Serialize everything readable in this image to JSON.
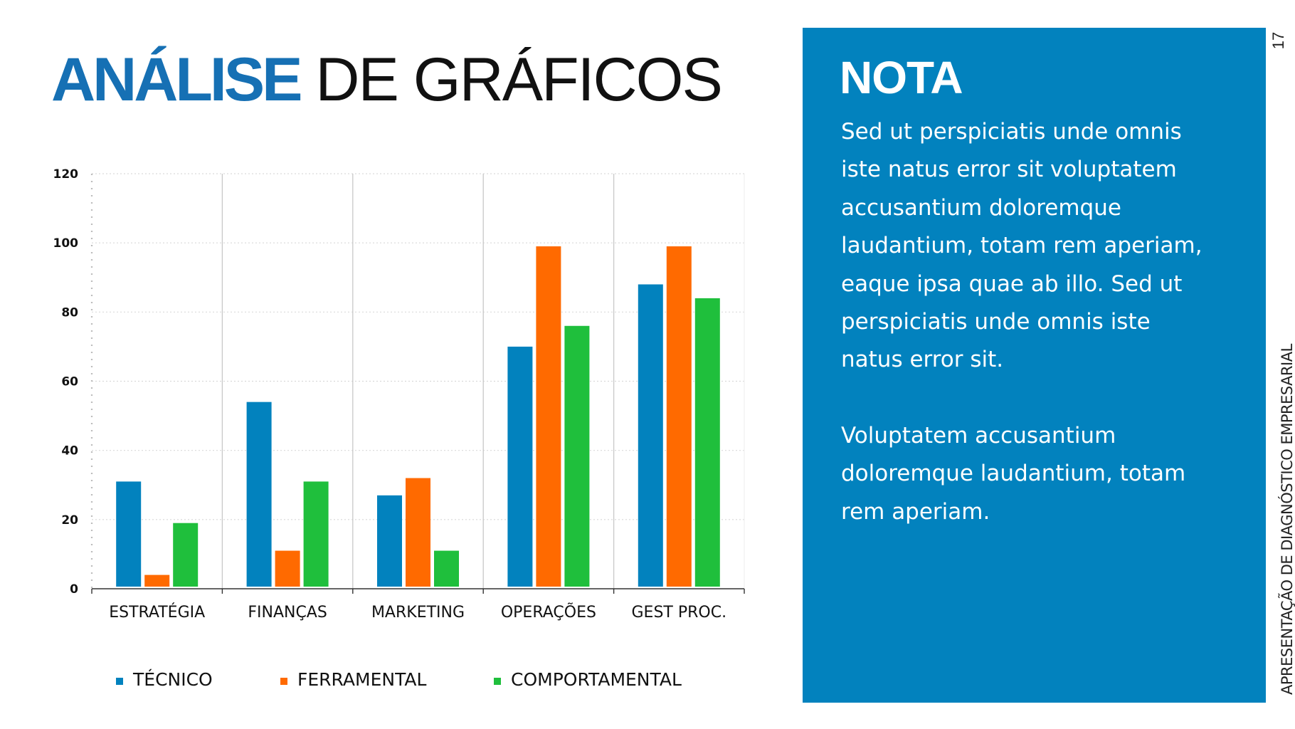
{
  "header": {
    "title_strong": "ANÁLISE",
    "title_light": "DE GRÁFICOS"
  },
  "chart_data": {
    "type": "bar",
    "title": "",
    "xlabel": "",
    "ylabel": "",
    "ylim": [
      0,
      120
    ],
    "yticks": [
      "0",
      "20",
      "40",
      "60",
      "80",
      "100",
      "120"
    ],
    "grid": true,
    "legend_position": "bottom",
    "categories": [
      "ESTRATÉGIA",
      "FINANÇAS",
      "MARKETING",
      "OPERAÇÕES",
      "GEST PROC."
    ],
    "series": [
      {
        "name": "TÉCNICO",
        "color": "#0282BE",
        "values": [
          31,
          54,
          27,
          70,
          88
        ]
      },
      {
        "name": "FERRAMENTAL",
        "color": "#FF6A00",
        "values": [
          4,
          11,
          32,
          99,
          99
        ]
      },
      {
        "name": "COMPORTAMENTAL",
        "color": "#1FBF3C",
        "values": [
          19,
          31,
          11,
          76,
          84
        ]
      }
    ]
  },
  "note": {
    "title": "NOTA",
    "paragraphs": [
      "Sed ut perspiciatis unde omnis\niste natus error sit voluptatem\naccusantium doloremque\nlaudantium, totam rem aperiam,\neaque ipsa quae ab illo. Sed ut\nperspiciatis unde omnis iste\nnatus error sit.",
      "Voluptatem accusantium\ndoloremque laudantium, totam\nrem aperiam."
    ],
    "background_color": "#0282BE"
  },
  "sidebar": {
    "page_number": "17",
    "presentation_title": "APRESENTAÇÃO DE DIAGNÓSTICO EMPRESARIAL"
  }
}
